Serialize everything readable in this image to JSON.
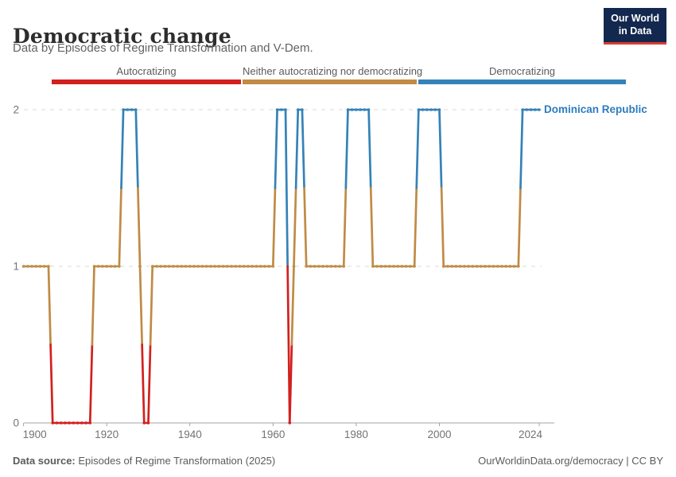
{
  "header": {
    "title": "Democratic change",
    "subtitle": "Data by Episodes of Regime Transformation and V-Dem."
  },
  "logo": {
    "line1": "Our World",
    "line2": "in Data",
    "bg_color": "#12284e",
    "accent_color": "#d93b33"
  },
  "legend": {
    "items": [
      {
        "label": "Autocratizing",
        "color": "#d2201f"
      },
      {
        "label": "Neither autocratizing nor democratizing",
        "color": "#bf8b45"
      },
      {
        "label": "Democratizing",
        "color": "#3582b8"
      }
    ]
  },
  "chart_data": {
    "type": "line",
    "title": "Democratic change",
    "entity_label": "Dominican Republic",
    "entity_label_color": "#2d7cbd",
    "xlabel": "",
    "ylabel": "",
    "xlim": [
      1900,
      2024
    ],
    "ylim": [
      0,
      2
    ],
    "x_ticks": [
      1900,
      1920,
      1940,
      1960,
      1980,
      2000,
      2024
    ],
    "y_ticks": [
      0,
      1,
      2
    ],
    "grid": "dashed horizontal gridlines at y=1 and y=2, solid axis at y=0",
    "legend_position": "top",
    "value_meaning": {
      "0": "Autocratizing",
      "1": "Neither autocratizing nor democratizing",
      "2": "Democratizing"
    },
    "value_colors": {
      "0": "#d2201f",
      "1": "#bf8b45",
      "2": "#3582b8"
    },
    "series_name": "Dominican Republic",
    "segments": [
      {
        "start_year": 1900,
        "end_year": 1906,
        "value": 1
      },
      {
        "start_year": 1907,
        "end_year": 1916,
        "value": 0
      },
      {
        "start_year": 1917,
        "end_year": 1923,
        "value": 1
      },
      {
        "start_year": 1924,
        "end_year": 1927,
        "value": 2
      },
      {
        "start_year": 1928,
        "end_year": 1928,
        "value": 1
      },
      {
        "start_year": 1929,
        "end_year": 1930,
        "value": 0
      },
      {
        "start_year": 1931,
        "end_year": 1960,
        "value": 1
      },
      {
        "start_year": 1961,
        "end_year": 1963,
        "value": 2
      },
      {
        "start_year": 1964,
        "end_year": 1964,
        "value": 0
      },
      {
        "start_year": 1965,
        "end_year": 1965,
        "value": 1
      },
      {
        "start_year": 1966,
        "end_year": 1967,
        "value": 2
      },
      {
        "start_year": 1968,
        "end_year": 1977,
        "value": 1
      },
      {
        "start_year": 1978,
        "end_year": 1983,
        "value": 2
      },
      {
        "start_year": 1984,
        "end_year": 1994,
        "value": 1
      },
      {
        "start_year": 1995,
        "end_year": 2000,
        "value": 2
      },
      {
        "start_year": 2001,
        "end_year": 2019,
        "value": 1
      },
      {
        "start_year": 2020,
        "end_year": 2024,
        "value": 2
      }
    ]
  },
  "footer": {
    "source_label": "Data source:",
    "source_text": " Episodes of Regime Transformation (2025)",
    "credit": "OurWorldinData.org/democracy | CC BY"
  }
}
